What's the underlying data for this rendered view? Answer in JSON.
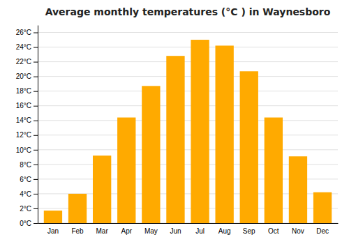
{
  "chart_data": {
    "type": "bar",
    "title": "Average monthly temperatures (°C ) in Waynesboro",
    "categories": [
      "Jan",
      "Feb",
      "Mar",
      "Apr",
      "May",
      "Jun",
      "Jul",
      "Aug",
      "Sep",
      "Oct",
      "Nov",
      "Dec"
    ],
    "values": [
      1.7,
      4.0,
      9.2,
      14.4,
      18.7,
      22.8,
      25.0,
      24.2,
      20.7,
      14.4,
      9.1,
      4.2
    ],
    "color": "#FFAA00",
    "ylim": [
      0,
      27
    ],
    "yticks": [
      {
        "value": 0,
        "label": "0°C"
      },
      {
        "value": 2,
        "label": "2°C"
      },
      {
        "value": 4,
        "label": "4°C"
      },
      {
        "value": 6,
        "label": "6°C"
      },
      {
        "value": 8,
        "label": "8°C"
      },
      {
        "value": 10,
        "label": "10°C"
      },
      {
        "value": 12,
        "label": "12°C"
      },
      {
        "value": 14,
        "label": "14°C"
      },
      {
        "value": 16,
        "label": "16°C"
      },
      {
        "value": 18,
        "label": "18°C"
      },
      {
        "value": 20,
        "label": "20°C"
      },
      {
        "value": 22,
        "label": "22°C"
      },
      {
        "value": 24,
        "label": "24°C"
      },
      {
        "value": 26,
        "label": "26°C"
      }
    ],
    "grid": true
  }
}
